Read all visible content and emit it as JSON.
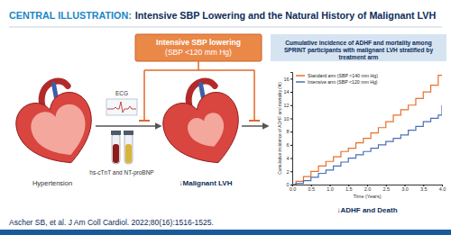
{
  "header": {
    "label": "CENTRAL ILLUSTRATION:",
    "title": "Intensive SBP Lowering and the Natural History of Malignant LVH"
  },
  "diagram": {
    "intervention": [
      "Intensive SBP lowering",
      "(SBP <120 mm Hg)"
    ],
    "start_label": "Hypertension",
    "ecg_label": "ECG",
    "biomarker_label": "hs-cTnT and NT-proBNP",
    "end_label": "↓Malignant LVH",
    "outcome_label": "↓ADHF and Death"
  },
  "chart_data": {
    "type": "line",
    "title": "Cumulative incidence of ADHF and mortality among SPRINT participants with malignant LVH stratified by treatment arm",
    "x_label": "Time (Years)",
    "y_label": "Cumulative incidence of ADHF and mortality (%)",
    "x": [
      0,
      0.1,
      0.3,
      0.5,
      0.7,
      0.9,
      1.1,
      1.3,
      1.5,
      1.7,
      1.9,
      2.1,
      2.3,
      2.5,
      2.7,
      2.9,
      3.1,
      3.3,
      3.5,
      3.7,
      3.9,
      4.0
    ],
    "xlim": [
      0,
      4.0
    ],
    "xticks": [
      {
        "value": 0,
        "label": "0.0"
      },
      {
        "value": 0.5,
        "label": "0.5"
      },
      {
        "value": 1,
        "label": "1.0"
      },
      {
        "value": 1.5,
        "label": "1.5"
      },
      {
        "value": 2,
        "label": "2.0"
      },
      {
        "value": 2.5,
        "label": "2.5"
      },
      {
        "value": 3,
        "label": "3.0"
      },
      {
        "value": 3.5,
        "label": "3.5"
      },
      {
        "value": 4,
        "label": "4.0"
      }
    ],
    "ylim": [
      0,
      17
    ],
    "yticks": [
      0,
      2,
      4,
      6,
      8,
      10,
      12,
      14,
      16
    ],
    "legend": "upper left",
    "line_style": "step",
    "series": [
      {
        "name": "Standard arm (SBP <140 mm Hg)",
        "color": "#e8702a",
        "values": [
          0,
          0.5,
          1.2,
          2,
          2.8,
          3.5,
          4.2,
          5,
          5.5,
          6.3,
          7,
          7.8,
          8.6,
          9.5,
          10.5,
          11.3,
          12,
          13,
          14,
          15,
          16.5,
          16.5
        ]
      },
      {
        "name": "Intensive arm (SBP <120 mm Hg)",
        "color": "#4a6fb5",
        "values": [
          0,
          0.2,
          0.6,
          1.1,
          1.7,
          2.2,
          2.8,
          3.4,
          4,
          4.5,
          5,
          5.5,
          6,
          6.5,
          7,
          7.5,
          8.2,
          8.8,
          9.5,
          10,
          10.5,
          12
        ]
      }
    ]
  },
  "footer": {
    "citation": "Ascher SB, et al. J Am Coll Cardiol. 2022;80(16):1516-1525."
  }
}
